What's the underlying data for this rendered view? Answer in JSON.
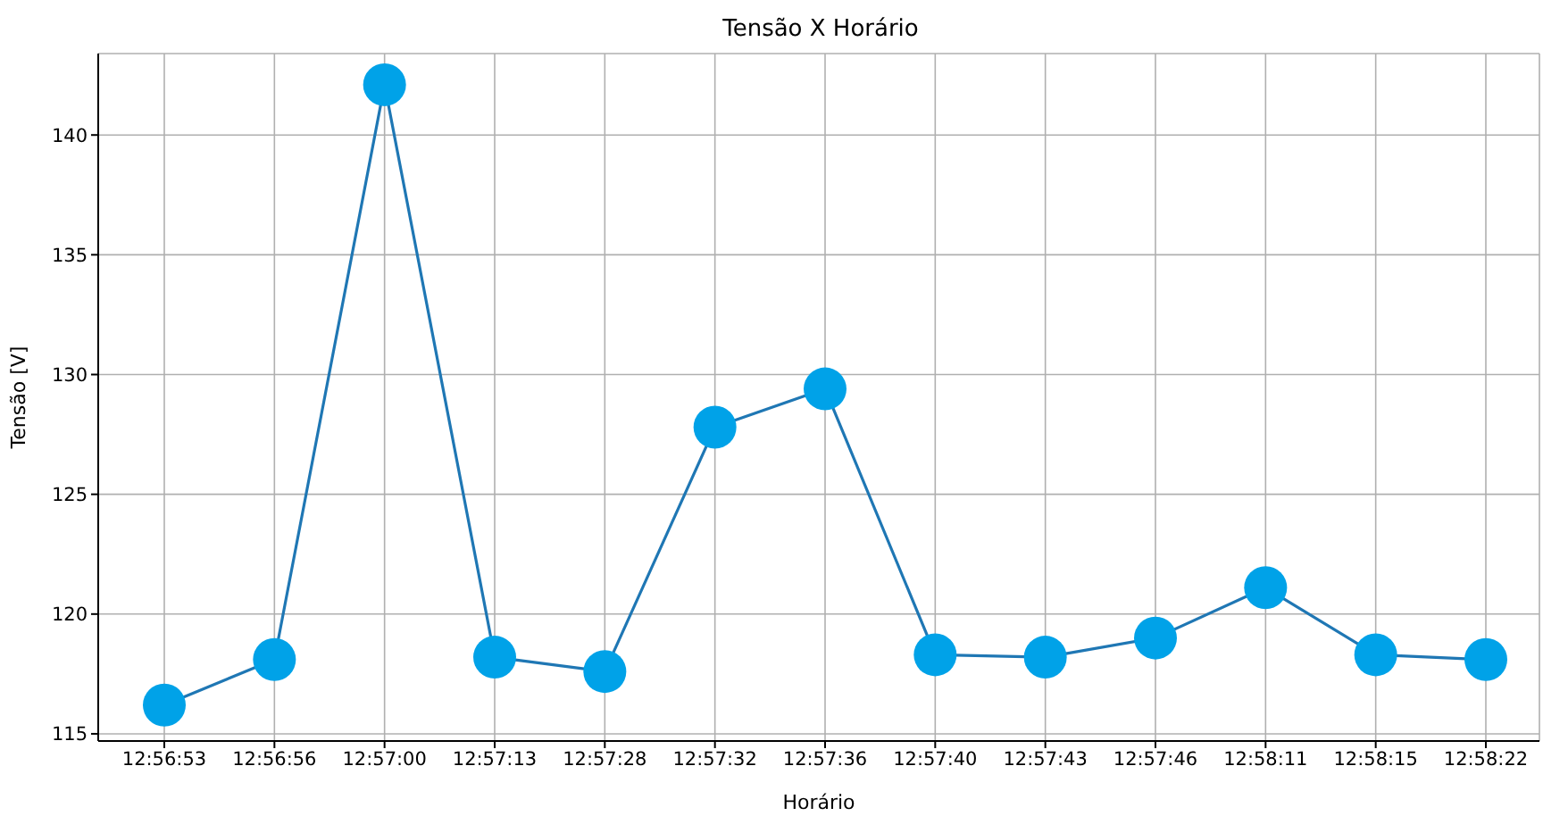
{
  "chart_data": {
    "type": "line",
    "title": "Tensão X Horário",
    "xlabel": "Horário",
    "ylabel": "Tensão [V]",
    "categories": [
      "12:56:53",
      "12:56:56",
      "12:57:00",
      "12:57:13",
      "12:57:28",
      "12:57:32",
      "12:57:36",
      "12:57:40",
      "12:57:43",
      "12:57:46",
      "12:58:11",
      "12:58:15",
      "12:58:22"
    ],
    "series": [
      {
        "color": "#1f77b4",
        "marker": "none",
        "values": [
          116.2,
          118.1,
          142.1,
          118.2,
          117.6,
          127.8,
          129.4,
          118.3,
          118.2,
          119.0,
          121.1,
          118.3,
          118.1
        ]
      },
      {
        "type": "scatter",
        "color": "#00a2e8",
        "marker": "circle",
        "values": [
          116.2,
          118.1,
          142.1,
          118.2,
          117.6,
          127.8,
          129.4,
          118.3,
          118.2,
          119.0,
          121.1,
          118.3,
          118.1
        ]
      }
    ],
    "ylim": [
      114.7,
      143.4
    ],
    "yticks": [
      115,
      120,
      125,
      130,
      135,
      140
    ],
    "grid": true
  }
}
